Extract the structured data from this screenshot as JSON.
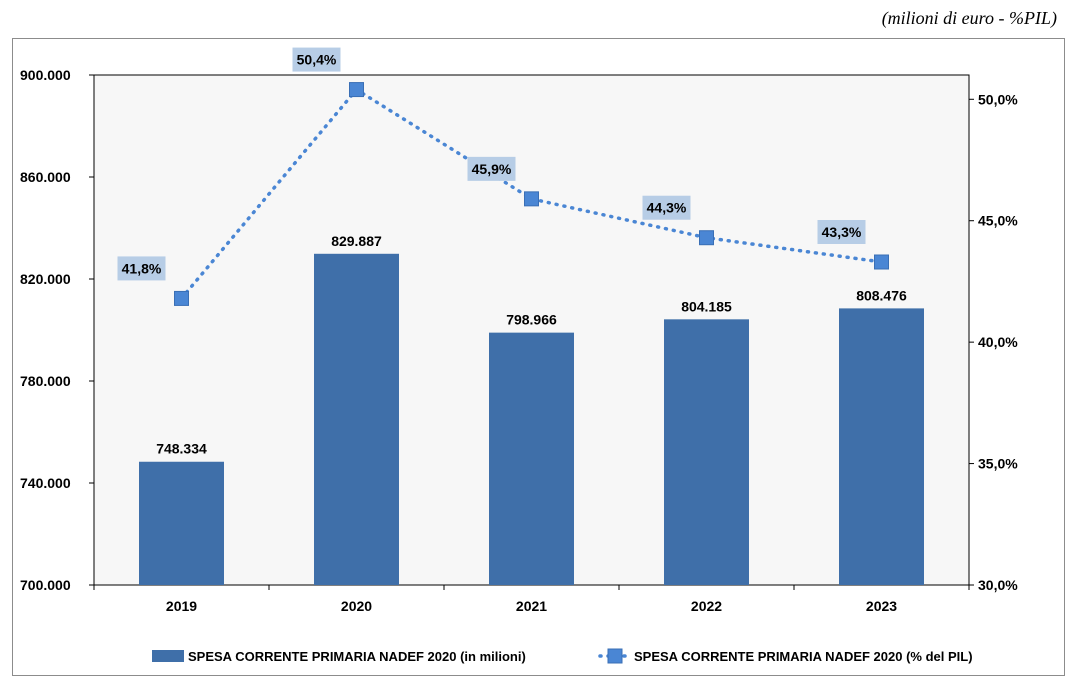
{
  "unit_note": "(milioni di euro - %PIL)",
  "colors": {
    "bar": "#3f6fa9",
    "line": "#4a86d4",
    "marker": "#4a86d4",
    "label_bg": "#b7cde6",
    "plot_bg": "#f7f7f7"
  },
  "chart_data": {
    "type": "bar",
    "categories": [
      "2019",
      "2020",
      "2021",
      "2022",
      "2023"
    ],
    "series": [
      {
        "name": "SPESA CORRENTE PRIMARIA NADEF 2020 (in milioni)",
        "type": "bar",
        "axis": "left",
        "values": [
          748334,
          829887,
          798966,
          804185,
          808476
        ],
        "labels": [
          "748.334",
          "829.887",
          "798.966",
          "804.185",
          "808.476"
        ]
      },
      {
        "name": "SPESA CORRENTE PRIMARIA NADEF 2020 (% del PIL)",
        "type": "line",
        "axis": "right",
        "values": [
          41.8,
          50.4,
          45.9,
          44.3,
          43.3
        ],
        "labels": [
          "41,8%",
          "50,4%",
          "45,9%",
          "44,3%",
          "43,3%"
        ]
      }
    ],
    "y_left": {
      "ylim": [
        700000,
        900000
      ],
      "ticks": [
        700000,
        740000,
        780000,
        820000,
        860000,
        900000
      ],
      "tick_labels": [
        "700.000",
        "740.000",
        "780.000",
        "820.000",
        "860.000",
        "900.000"
      ]
    },
    "y_right": {
      "ylim": [
        30,
        51
      ],
      "ticks": [
        30,
        35,
        40,
        45,
        50
      ],
      "tick_labels": [
        "30,0%",
        "35,0%",
        "40,0%",
        "45,0%",
        "50,0%"
      ]
    },
    "grid": false,
    "legend_position": "bottom"
  }
}
